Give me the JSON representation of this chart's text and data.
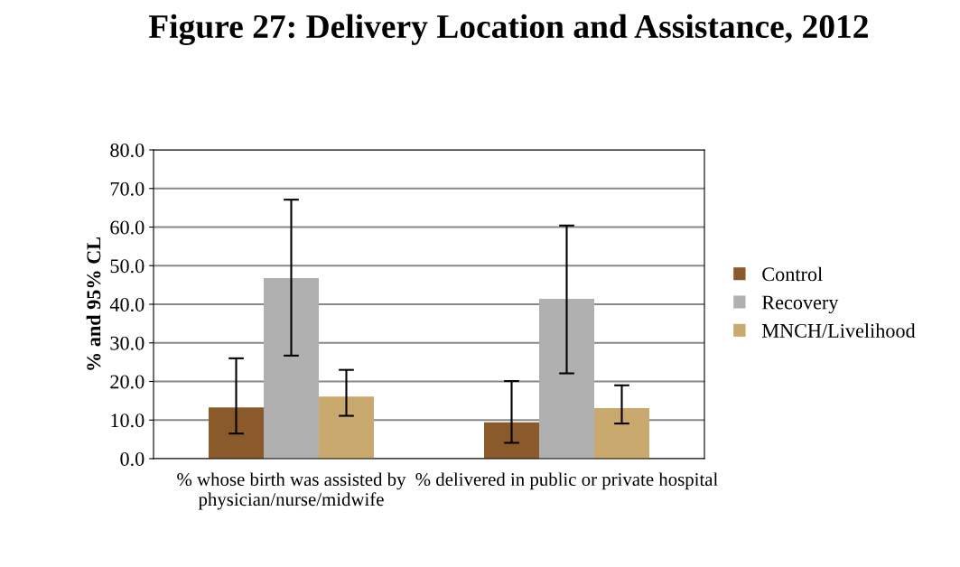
{
  "chart_data": {
    "type": "bar",
    "title": "Figure 27: Delivery Location and Assistance, 2012",
    "ylabel": "% and 95% CL",
    "categories": [
      "% whose birth was assisted by physician/nurse/midwife",
      "% delivered in public or private hospital"
    ],
    "series": [
      {
        "name": "Control",
        "color": "#8b5a2b",
        "values": [
          13.3,
          9.4
        ],
        "errors": [
          [
            6.5,
            26.0
          ],
          [
            4.1,
            20.1
          ]
        ]
      },
      {
        "name": "Recovery",
        "color": "#b0b0b0",
        "values": [
          46.8,
          41.4
        ],
        "errors": [
          [
            26.7,
            67.1
          ],
          [
            22.1,
            60.4
          ]
        ]
      },
      {
        "name": "MNCH/Livelihood",
        "color": "#c9a96e",
        "values": [
          16.1,
          13.1
        ],
        "errors": [
          [
            11.1,
            23.0
          ],
          [
            9.1,
            19.0
          ]
        ]
      }
    ],
    "ylim": [
      0,
      80
    ],
    "yticks": [
      {
        "value": 0,
        "label": "0.0"
      },
      {
        "value": 10,
        "label": "10.0"
      },
      {
        "value": 20,
        "label": "20.0"
      },
      {
        "value": 30,
        "label": "30.0"
      },
      {
        "value": 40,
        "label": "40.0"
      },
      {
        "value": 50,
        "label": "50.0"
      },
      {
        "value": 60,
        "label": "60.0"
      },
      {
        "value": 70,
        "label": "70.0"
      },
      {
        "value": 80,
        "label": "80.0"
      }
    ],
    "grid": "y",
    "legend": "right"
  }
}
